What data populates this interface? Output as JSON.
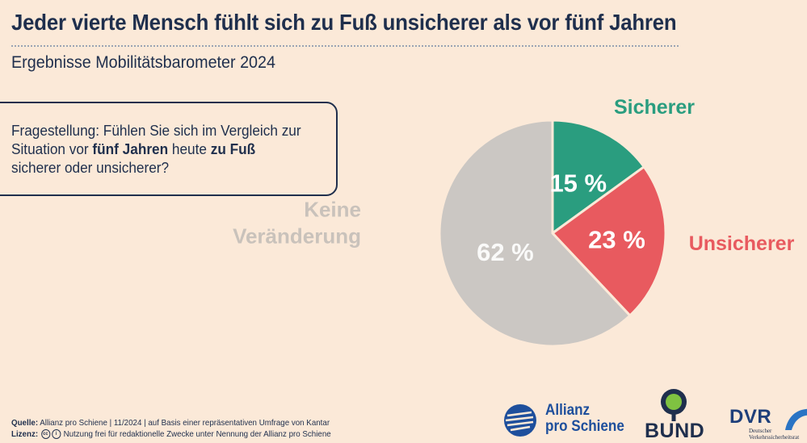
{
  "header": {
    "title": "Jeder vierte Mensch fühlt sich zu Fuß unsicherer als vor fünf Jahren",
    "subtitle": "Ergebnisse Mobilitätsbarometer 2024"
  },
  "question": {
    "part1": "Fragestellung: Fühlen Sie sich im Vergleich zur Situation vor ",
    "bold1": "fünf Jahren",
    "part2": " heute ",
    "bold2": "zu Fuß",
    "part3": " sicherer oder unsicherer?"
  },
  "chart_data": {
    "type": "pie",
    "slices": [
      {
        "label": "Sicherer",
        "value": 15,
        "value_label": "15 %",
        "color": "#2a9d7f"
      },
      {
        "label": "Unsicherer",
        "value": 23,
        "value_label": "23 %",
        "color": "#e85a5f"
      },
      {
        "label": "Keine Veränderung",
        "label_lines": [
          "Keine",
          "Veränderung"
        ],
        "value": 62,
        "value_label": "62 %",
        "color": "#cbc7c3"
      }
    ],
    "start_angle_deg": 0,
    "direction": "clockwise"
  },
  "colors": {
    "background": "#fbe9d8",
    "navy": "#1f2f4d",
    "sicherer": "#2a9d7f",
    "unsicherer": "#e85a5f",
    "keine": "#cbc7c3",
    "keine_label": "#c9c2bb"
  },
  "footer": {
    "source_label": "Quelle:",
    "source_text": " Allianz pro Schiene | 11/2024 | auf Basis einer repräsentativen Umfrage von Kantar",
    "license_label": "Lizenz:",
    "license_text": " Nutzung frei für redaktionelle Zwecke unter Nennung der Allianz pro Schiene",
    "license_icons": [
      "cc-icon",
      "by-icon"
    ]
  },
  "logos": {
    "allianz_line1": "Allianz",
    "allianz_line2": "pro Schiene",
    "bund": "BUND",
    "dvr": "DVR",
    "dvr_sub_line1": "Deutscher",
    "dvr_sub_line2": "Verkehrssicherheitsrat"
  }
}
